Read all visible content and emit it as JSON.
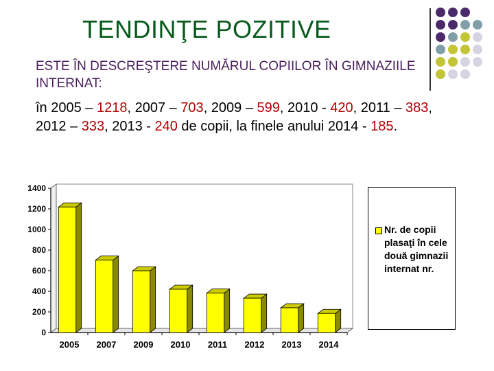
{
  "slide": {
    "title": "TENDINŢE POZITIVE",
    "subtitle": "ESTE ÎN DESCREŞTERE NUMĂRUL COPIILOR ÎN GIMNAZIILE INTERNAT:",
    "text": {
      "t0": "în 2005 – ",
      "n0": "1218",
      "t1": ", 2007 – ",
      "n1": "703",
      "t2": ", 2009 – ",
      "n2": "599",
      "t3": ", 2010 - ",
      "n3": "420",
      "t4": ", 2011 – ",
      "n4": "383",
      "t5": ", 2012 – ",
      "n5": "333",
      "t6": ", 2013 - ",
      "n6": "240",
      "t7": " de copii, la finele anului 2014 - ",
      "n7": "185",
      "t8": "."
    }
  },
  "decor": {
    "dot_colors": [
      "#4b2a6a",
      "#7f9ea8",
      "#c4c437",
      "#d4d4e3"
    ]
  },
  "chart_data": {
    "type": "bar",
    "categories": [
      "2005",
      "2007",
      "2009",
      "2010",
      "2011",
      "2012",
      "2013",
      "2014"
    ],
    "series": [
      {
        "name": "Nr. de copii plasaţi în cele două gimnazii internat nr.",
        "values": [
          1218,
          703,
          599,
          420,
          383,
          333,
          240,
          185
        ]
      }
    ],
    "y_ticks": [
      "0",
      "200",
      "400",
      "600",
      "800",
      "1000",
      "1200",
      "1400"
    ],
    "ylim": [
      0,
      1400
    ],
    "bar_color": "#ffff00",
    "bar_depth_color": "#8a8a00",
    "legend_position": "right",
    "grid": false
  }
}
